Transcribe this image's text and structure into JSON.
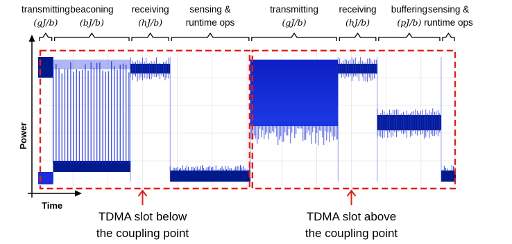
{
  "chart_data": {
    "type": "line",
    "title": "",
    "xlabel": "Time",
    "ylabel": "Power",
    "grid": true,
    "colors": {
      "signal": "#1c2fd6",
      "signal_dark": "#001a8c",
      "slot_box": "#e0201c",
      "brace": "#000000"
    },
    "phases": [
      {
        "label": "transmitting",
        "unit": "(gJ/b)",
        "start": 0.0,
        "end": 0.036,
        "level_high": 0.95,
        "level_low": 0.8,
        "pattern": "solid"
      },
      {
        "label": "beaconing",
        "unit": "(bJ/b)",
        "start": 0.036,
        "end": 0.221,
        "level_high": 0.93,
        "level_low": 0.18,
        "pattern": "bursts"
      },
      {
        "label": "receiving",
        "unit": "(hJ/b)",
        "start": 0.221,
        "end": 0.316,
        "level_high": 0.9,
        "level_low": 0.83,
        "pattern": "band"
      },
      {
        "label": "sensing & runtime ops",
        "unit": "",
        "start": 0.316,
        "end": 0.508,
        "level_high": 0.17,
        "level_low": 0.05,
        "pattern": "noise"
      },
      {
        "label": "transmitting",
        "unit": "(gJ/b)",
        "start": 0.508,
        "end": 0.718,
        "level_high": 0.93,
        "level_low": 0.45,
        "pattern": "dense"
      },
      {
        "label": "receiving",
        "unit": "(hJ/b)",
        "start": 0.718,
        "end": 0.812,
        "level_high": 0.9,
        "level_low": 0.83,
        "pattern": "band"
      },
      {
        "label": "buffering",
        "unit": "(pJ/b)",
        "start": 0.812,
        "end": 0.965,
        "level_high": 0.53,
        "level_low": 0.42,
        "pattern": "band"
      },
      {
        "label": "sensing & runtime ops",
        "unit": "",
        "start": 0.965,
        "end": 1.0,
        "level_high": 0.17,
        "level_low": 0.05,
        "pattern": "noise"
      }
    ],
    "annotations": [
      {
        "text": "TDMA slot below the coupling point",
        "line1": "TDMA slot below",
        "line2": "the coupling point",
        "start": 0.0,
        "end": 0.508
      },
      {
        "text": "TDMA slot above the coupling point",
        "line1": "TDMA slot above",
        "line2": "the coupling point",
        "start": 0.508,
        "end": 1.0
      }
    ]
  }
}
